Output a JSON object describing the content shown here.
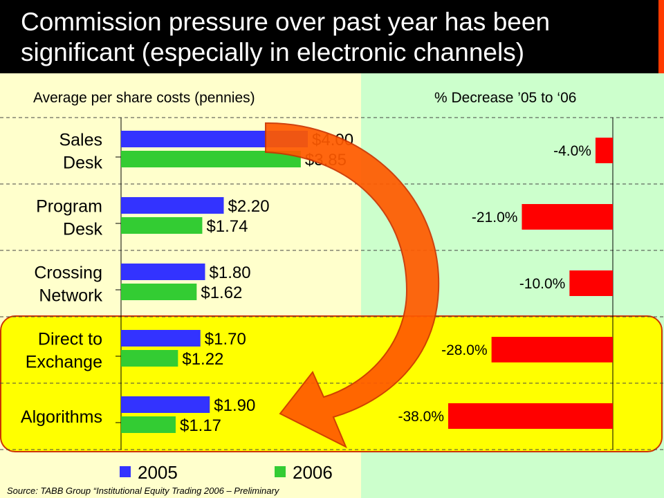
{
  "header": {
    "title_line1": "Commission pressure over past year has been",
    "title_line2": "significant (especially in electronic channels)"
  },
  "left_panel": {
    "title": "Average per share costs (pennies)"
  },
  "right_panel": {
    "title": "% Decrease ’05 to ‘06"
  },
  "source": "Source: TABB Group “Institutional Equity Trading 2006 – Preliminary",
  "colors": {
    "header_bg": "#000000",
    "accent": "#ff3a00",
    "left_bg": "#ffffcc",
    "right_bg": "#ccffcc",
    "highlight": "#ffff00",
    "series_2005": "#3333ff",
    "series_2006": "#33cc33",
    "decrease": "#ff0000",
    "arrow": "#ff5a00"
  },
  "chart_data": [
    {
      "type": "bar",
      "orientation": "horizontal",
      "title": "Average per share costs (pennies)",
      "categories": [
        [
          "Sales",
          "Desk"
        ],
        [
          "Program",
          "Desk"
        ],
        [
          "Crossing",
          "Network"
        ],
        [
          "Direct to",
          "Exchange"
        ],
        [
          "Algorithms"
        ]
      ],
      "series": [
        {
          "name": "2005",
          "values": [
            4.0,
            2.2,
            1.8,
            1.7,
            1.9
          ],
          "labels": [
            "$4.00",
            "$2.20",
            "$1.80",
            "$1.70",
            "$1.90"
          ]
        },
        {
          "name": "2006",
          "values": [
            3.85,
            1.74,
            1.62,
            1.22,
            1.17
          ],
          "labels": [
            "$3.85",
            "$1.74",
            "$1.62",
            "$1.22",
            "$1.17"
          ]
        }
      ],
      "xlim": [
        0,
        4.7
      ],
      "legend": "bottom",
      "grid": "horizontal dashed"
    },
    {
      "type": "bar",
      "orientation": "horizontal",
      "title": "% Decrease ’05 to ‘06",
      "categories": [
        "Sales Desk",
        "Program Desk",
        "Crossing Network",
        "Direct to Exchange",
        "Algorithms"
      ],
      "values": [
        -4.0,
        -21.0,
        -10.0,
        -28.0,
        -38.0
      ],
      "labels": [
        "-4.0%",
        "-21.0%",
        "-10.0%",
        "-28.0%",
        "-38.0%"
      ],
      "xlim": [
        -50,
        0
      ]
    }
  ]
}
